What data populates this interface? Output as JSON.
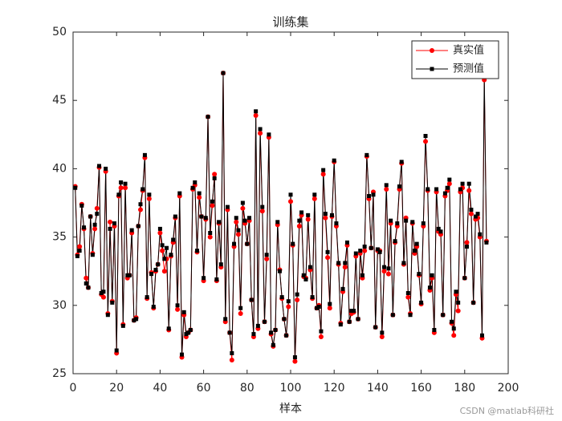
{
  "chart_data": {
    "type": "line",
    "title": "训练集",
    "x_label": "样本",
    "x": [
      1,
      2,
      3,
      4,
      5,
      6,
      7,
      8,
      9,
      10,
      11,
      12,
      13,
      14,
      15,
      16,
      17,
      18,
      19,
      20,
      21,
      22,
      23,
      24,
      25,
      26,
      27,
      28,
      29,
      30,
      31,
      32,
      33,
      34,
      35,
      36,
      37,
      38,
      39,
      40,
      41,
      42,
      43,
      44,
      45,
      46,
      47,
      48,
      49,
      50,
      51,
      52,
      53,
      54,
      55,
      56,
      57,
      58,
      59,
      60,
      61,
      62,
      63,
      64,
      65,
      66,
      67,
      68,
      69,
      70,
      71,
      72,
      73,
      74,
      75,
      76,
      77,
      78,
      79,
      80,
      81,
      82,
      83,
      84,
      85,
      86,
      87,
      88,
      89,
      90,
      91,
      92,
      93,
      94,
      95,
      96,
      97,
      98,
      99,
      100,
      101,
      102,
      103,
      104,
      105,
      106,
      107,
      108,
      109,
      110,
      111,
      112,
      113,
      114,
      115,
      116,
      117,
      118,
      119,
      120,
      121,
      122,
      123,
      124,
      125,
      126,
      127,
      128,
      129,
      130,
      131,
      132,
      133,
      134,
      135,
      136,
      137,
      138,
      139,
      140,
      141,
      142,
      143,
      144,
      145,
      146,
      147,
      148,
      149,
      150,
      151,
      152,
      153,
      154,
      155,
      156,
      157,
      158,
      159,
      160,
      161,
      162,
      163,
      164,
      165,
      166,
      167,
      168,
      169,
      170,
      171,
      172,
      173,
      174,
      175,
      176,
      177,
      178,
      179,
      180,
      181,
      182,
      183,
      184,
      185,
      186,
      187,
      188,
      189,
      190
    ],
    "series": [
      {
        "name": "真实值",
        "color": "#ff0000",
        "marker": "circle",
        "values": [
          38.7,
          33.7,
          34.3,
          37.4,
          35.6,
          32.0,
          31.3,
          36.5,
          33.8,
          35.6,
          37.1,
          40.1,
          30.8,
          30.6,
          39.8,
          29.4,
          36.1,
          30.3,
          35.8,
          26.5,
          38.0,
          38.6,
          28.6,
          38.6,
          32.0,
          32.2,
          35.3,
          28.9,
          29.1,
          35.8,
          37.0,
          38.4,
          40.8,
          30.5,
          37.8,
          32.4,
          29.8,
          32.5,
          33.0,
          35.3,
          34.0,
          32.5,
          33.4,
          28.2,
          33.6,
          34.6,
          36.4,
          29.7,
          38.0,
          26.2,
          29.3,
          27.7,
          28.0,
          28.2,
          38.5,
          38.8,
          33.9,
          37.9,
          36.5,
          31.8,
          36.3,
          43.8,
          35.0,
          37.3,
          39.6,
          31.8,
          36.0,
          32.8,
          47.0,
          28.8,
          37.0,
          28.0,
          26.0,
          34.3,
          36.1,
          35.2,
          29.4,
          37.1,
          36.0,
          34.5,
          36.2,
          30.4,
          27.7,
          43.9,
          28.3,
          42.6,
          36.9,
          28.8,
          33.4,
          42.3,
          27.9,
          27.0,
          28.2,
          35.9,
          32.6,
          30.5,
          29.0,
          27.8,
          29.9,
          37.6,
          34.4,
          25.9,
          30.4,
          35.8,
          36.6,
          32.1,
          32.0,
          36.3,
          32.6,
          30.5,
          37.8,
          29.8,
          30.0,
          27.7,
          39.6,
          36.4,
          33.5,
          29.8,
          36.5,
          40.5,
          35.8,
          33.0,
          28.7,
          31.0,
          32.8,
          34.4,
          28.8,
          29.4,
          29.5,
          33.6,
          29.0,
          33.8,
          32.0,
          34.0,
          40.9,
          37.8,
          34.2,
          38.3,
          28.4,
          34.0,
          34.0,
          27.7,
          32.5,
          38.5,
          32.3,
          36.0,
          29.3,
          34.6,
          35.8,
          38.5,
          40.4,
          33.0,
          36.4,
          30.6,
          29.4,
          36.0,
          33.8,
          34.3,
          32.2,
          30.1,
          35.8,
          42.0,
          38.4,
          31.1,
          32.0,
          28.0,
          38.3,
          35.4,
          35.2,
          29.3,
          38.0,
          38.4,
          38.9,
          28.7,
          27.8,
          30.8,
          29.6,
          38.3,
          38.6,
          32.0,
          34.6,
          38.4,
          36.7,
          30.2,
          36.3,
          36.4,
          35.0,
          27.6,
          46.5,
          34.7
        ]
      },
      {
        "name": "预测值",
        "color": "#000000",
        "marker": "square",
        "values": [
          38.6,
          33.6,
          34.0,
          37.3,
          35.7,
          31.6,
          31.3,
          36.5,
          33.7,
          35.9,
          36.7,
          40.2,
          30.9,
          31.0,
          40.0,
          29.3,
          35.6,
          30.2,
          36.0,
          26.7,
          38.1,
          39.0,
          28.5,
          38.9,
          32.2,
          32.2,
          35.5,
          28.9,
          29.0,
          35.8,
          37.4,
          38.5,
          41.0,
          30.6,
          38.1,
          32.3,
          29.9,
          32.6,
          33.0,
          35.6,
          34.4,
          33.4,
          34.2,
          28.3,
          33.7,
          34.8,
          36.5,
          30.0,
          38.2,
          26.4,
          29.5,
          27.9,
          28.0,
          28.2,
          38.6,
          39.0,
          34.0,
          38.2,
          36.5,
          32.0,
          36.4,
          43.8,
          35.3,
          37.6,
          39.3,
          31.9,
          36.1,
          33.0,
          47.0,
          29.0,
          37.2,
          28.0,
          26.5,
          34.5,
          36.4,
          35.5,
          29.8,
          37.5,
          36.2,
          34.5,
          36.4,
          30.4,
          27.9,
          44.2,
          28.5,
          42.9,
          37.2,
          28.8,
          33.7,
          42.5,
          28.0,
          27.1,
          28.2,
          36.1,
          32.5,
          30.6,
          29.0,
          27.8,
          30.3,
          38.1,
          34.5,
          26.2,
          30.8,
          36.2,
          36.8,
          32.2,
          31.9,
          36.6,
          32.8,
          30.6,
          38.1,
          29.8,
          29.9,
          28.1,
          39.9,
          36.7,
          33.9,
          30.1,
          36.6,
          40.6,
          36.0,
          33.1,
          28.6,
          31.2,
          33.1,
          34.6,
          28.8,
          29.6,
          29.6,
          33.8,
          29.0,
          34.0,
          32.2,
          34.3,
          41.0,
          38.0,
          34.2,
          38.1,
          28.4,
          34.1,
          33.9,
          28.0,
          32.8,
          38.8,
          32.7,
          36.2,
          29.3,
          34.7,
          36.0,
          38.7,
          40.5,
          33.1,
          36.2,
          30.9,
          29.3,
          36.1,
          34.0,
          34.5,
          32.3,
          30.2,
          36.0,
          42.4,
          38.5,
          31.3,
          32.2,
          28.2,
          38.5,
          35.6,
          35.4,
          29.3,
          38.2,
          38.6,
          39.2,
          28.8,
          28.3,
          31.0,
          30.2,
          38.5,
          38.9,
          32.0,
          34.3,
          38.9,
          37.0,
          30.2,
          36.5,
          36.7,
          35.2,
          27.8,
          46.9,
          34.6
        ]
      }
    ],
    "xlim": [
      0,
      200
    ],
    "xticks": [
      0,
      20,
      40,
      60,
      80,
      100,
      120,
      140,
      160,
      180,
      200
    ],
    "ylim": [
      25,
      50
    ],
    "yticks": [
      25,
      30,
      35,
      40,
      45,
      50
    ],
    "legend": "upper right",
    "grid": false
  },
  "watermark": "CSDN @matlab科研社"
}
